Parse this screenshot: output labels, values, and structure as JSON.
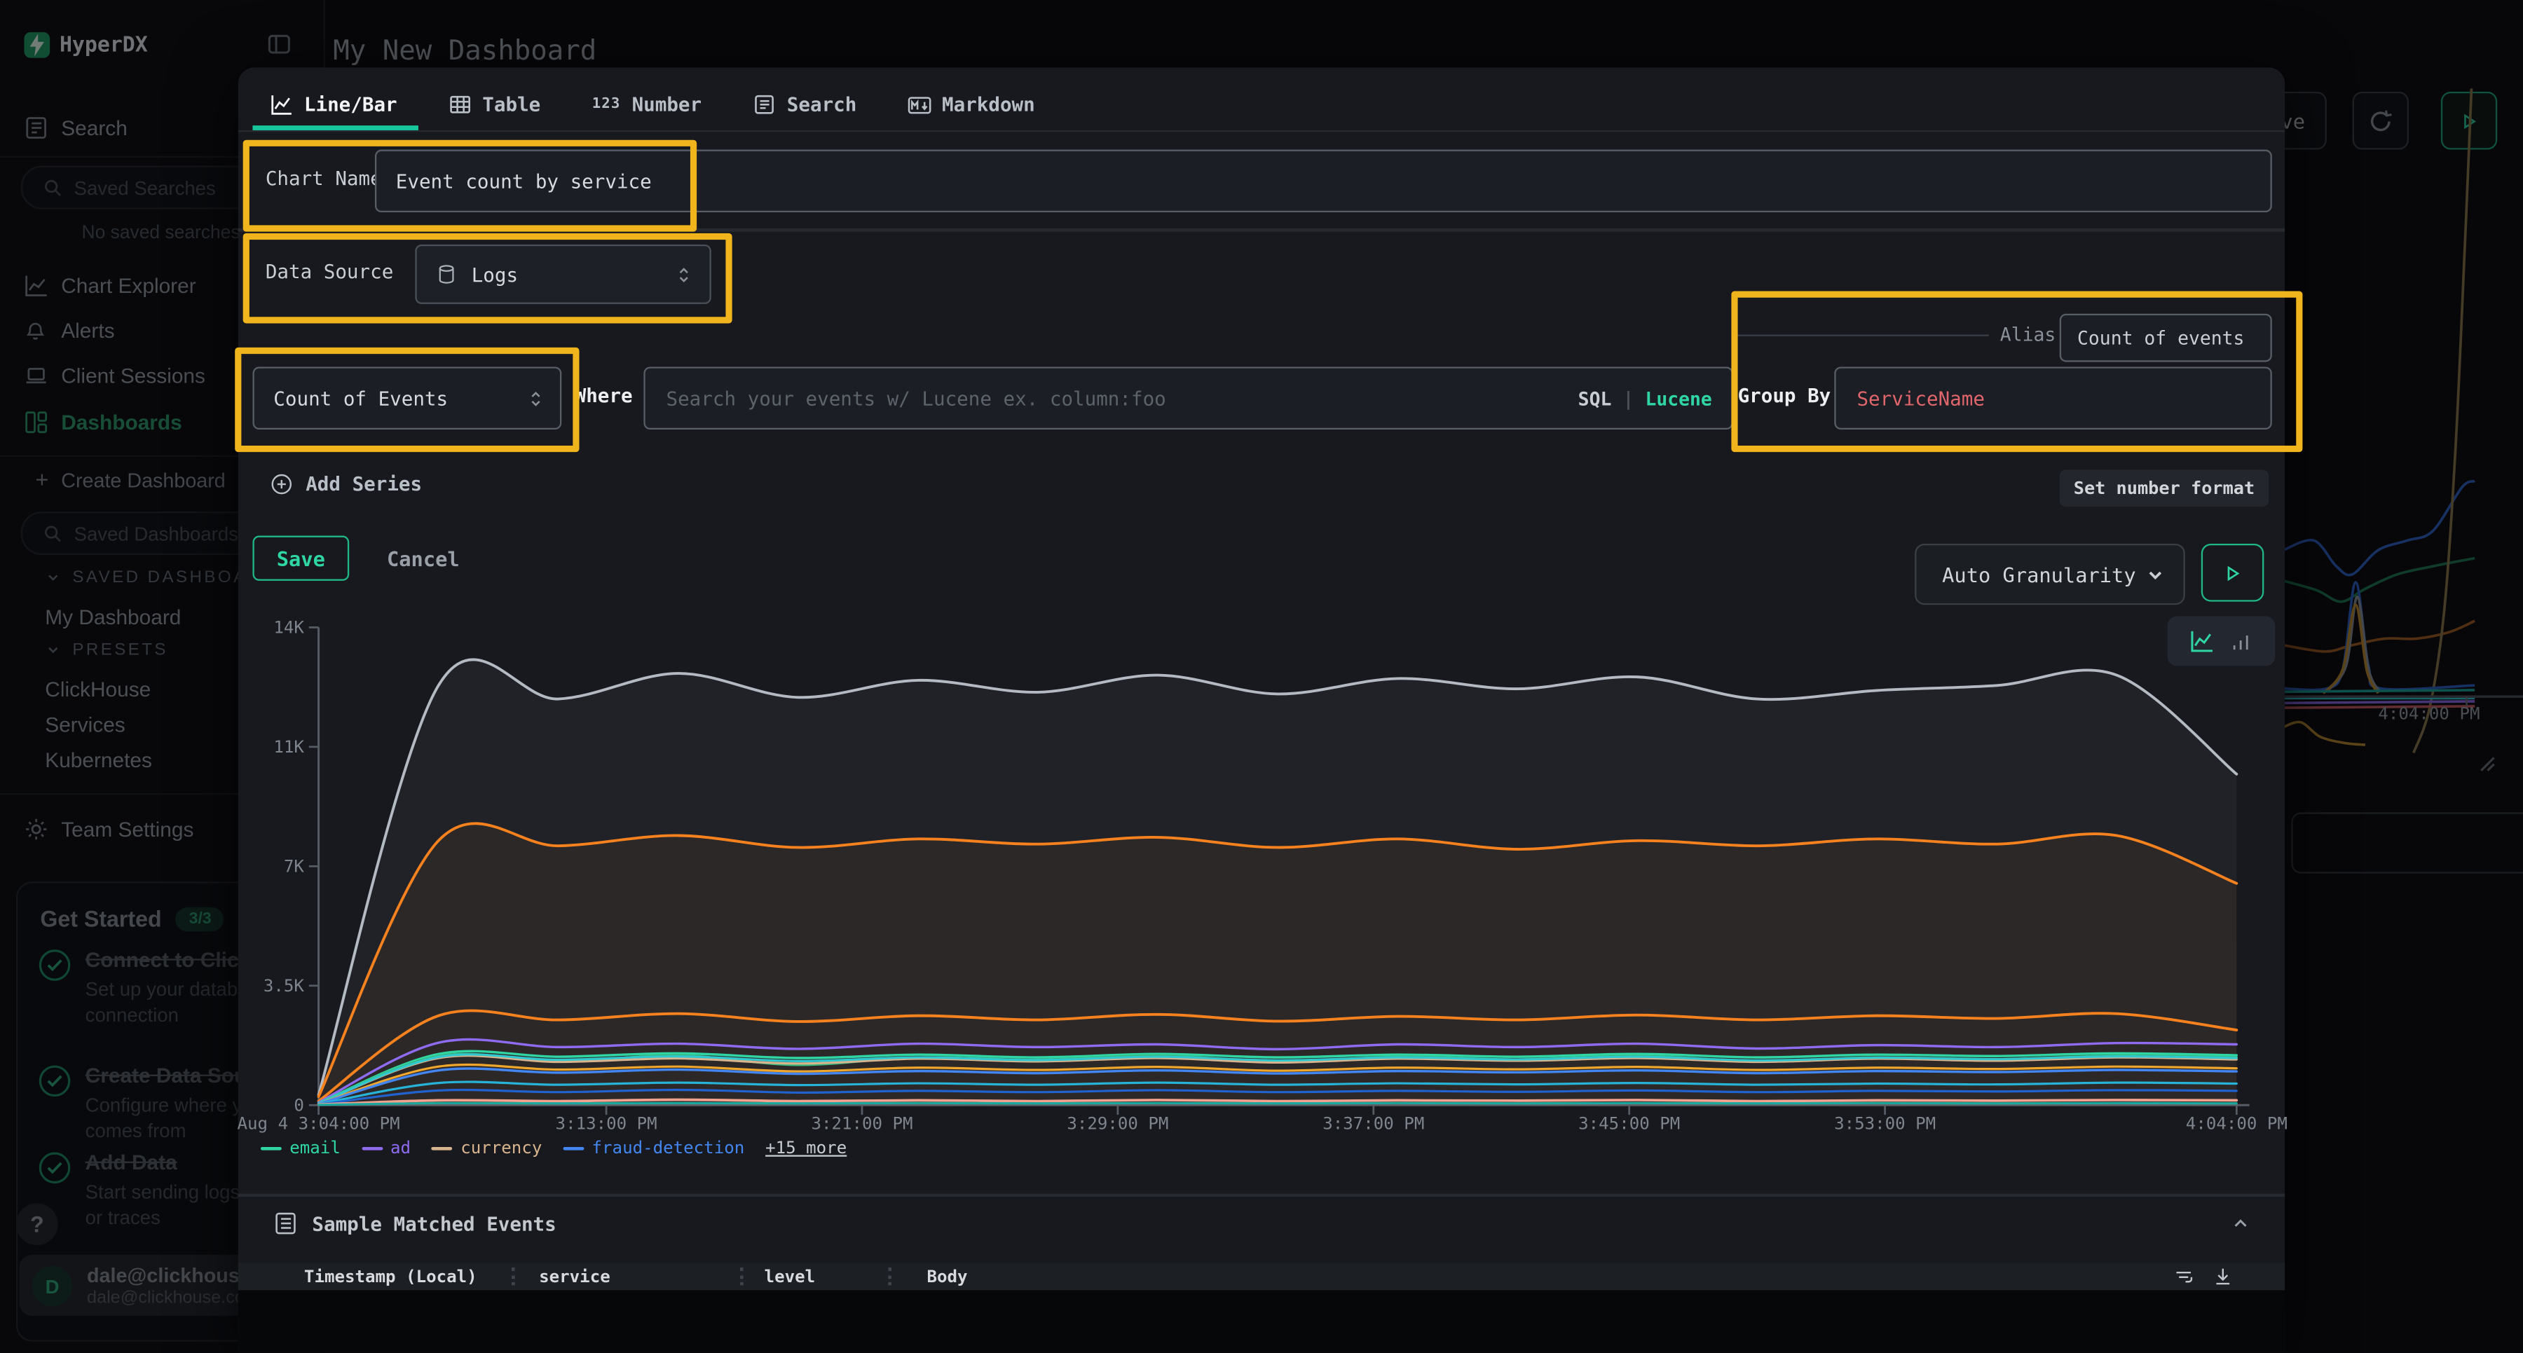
{
  "app": {
    "brand": "HyperDX",
    "page_title": "My New Dashboard"
  },
  "topbar": {
    "save_label": "Save"
  },
  "sidebar": {
    "items": [
      {
        "label": "Search"
      },
      {
        "label": "Chart Explorer"
      },
      {
        "label": "Alerts"
      },
      {
        "label": "Client Sessions"
      },
      {
        "label": "Dashboards",
        "active": true
      }
    ],
    "saved_searches_placeholder": "Saved Searches",
    "no_saved_searches": "No saved searches",
    "create_dashboard_label": "Create Dashboard",
    "saved_dashboards_placeholder": "Saved Dashboards",
    "saved_dashboards_section": "SAVED DASHBOARDS",
    "my_dashboard_label": "My Dashboard",
    "presets_section": "PRESETS",
    "presets": [
      {
        "label": "ClickHouse"
      },
      {
        "label": "Services"
      },
      {
        "label": "Kubernetes"
      }
    ],
    "team_settings_label": "Team Settings",
    "get_started": {
      "title": "Get Started",
      "badge": "3/3",
      "steps": [
        {
          "title": "Connect to ClickHouse",
          "desc": "Set up your database connection"
        },
        {
          "title": "Create Data Source",
          "desc": "Configure where your data comes from"
        },
        {
          "title": "Add Data",
          "desc": "Start sending logs, metrics, or traces"
        }
      ]
    },
    "help_label": "?",
    "user": {
      "initial": "D",
      "name": "dale@clickhouse.c",
      "subtitle": "dale@clickhouse.com's"
    }
  },
  "modal": {
    "tabs": [
      {
        "label": "Line/Bar",
        "active": true
      },
      {
        "label": "Table",
        "active": false
      },
      {
        "label": "Number",
        "active": false
      },
      {
        "label": "Search",
        "active": false
      },
      {
        "label": "Markdown",
        "active": false
      }
    ],
    "chart_name_label": "Chart Name",
    "chart_name_value": "Event count by service",
    "data_source_label": "Data Source",
    "data_source_value": "Logs",
    "aggregation_value": "Count of Events",
    "where_label": "Where",
    "where_placeholder": "Search your events w/ Lucene ex. column:foo",
    "sql_toggle": "SQL",
    "lucene_toggle": "Lucene",
    "alias_label": "Alias",
    "alias_value": "Count of events",
    "group_by_label": "Group By",
    "group_by_value": "ServiceName",
    "add_series_label": "Add Series",
    "set_number_format_label": "Set number format",
    "save_label": "Save",
    "cancel_label": "Cancel",
    "granularity_value": "Auto Granularity",
    "sample_events_title": "Sample Matched Events",
    "table_headers": [
      "Timestamp (Local)",
      "service",
      "level",
      "Body"
    ],
    "colors": {
      "accent": "#2fd6a4",
      "highlight": "#f0b41c",
      "group_by_value_color": "#e0666c"
    }
  },
  "chart_data": {
    "type": "line",
    "title": "Event count by service",
    "xlabel": "",
    "ylabel": "",
    "ylim": [
      0,
      14000
    ],
    "grid": false,
    "legend_position": "bottom-left",
    "y_ticks": [
      {
        "v": 14,
        "label": "14K"
      },
      {
        "v": 10.5,
        "label": "11K"
      },
      {
        "v": 7,
        "label": "7K"
      },
      {
        "v": 3.5,
        "label": "3.5K"
      },
      {
        "v": 0,
        "label": "0"
      }
    ],
    "x_ticks": [
      {
        "m": 0,
        "label": "Aug 4 3:04:00 PM"
      },
      {
        "m": 9,
        "label": "3:13:00 PM"
      },
      {
        "m": 17,
        "label": "3:21:00 PM"
      },
      {
        "m": 25,
        "label": "3:29:00 PM"
      },
      {
        "m": 33,
        "label": "3:37:00 PM"
      },
      {
        "m": 41,
        "label": "3:45:00 PM"
      },
      {
        "m": 49,
        "label": "3:53:00 PM"
      },
      {
        "m": 60,
        "label": "4:04:00 PM"
      }
    ],
    "x_minutes": [
      0,
      3.75,
      7.5,
      11.25,
      15,
      18.75,
      22.5,
      26.25,
      30,
      33.75,
      37.5,
      41.25,
      45,
      48.75,
      52.5,
      56.25,
      60
    ],
    "legend": [
      {
        "label": "email",
        "color": "#2fd6a4",
        "link": false
      },
      {
        "label": "ad",
        "color": "#8f6bef",
        "link": false
      },
      {
        "label": "currency",
        "color": "#d8b48e",
        "link": false
      },
      {
        "label": "fraud-detection",
        "color": "#4486f0",
        "link": false
      },
      {
        "label": "+15 more",
        "color": null,
        "link": true
      }
    ],
    "series": [
      {
        "name": "unlabeled-1",
        "color": "#b4bac2",
        "fill": "rgba(214,220,228,0.05)",
        "width": 1.7,
        "values_k": [
          0.3,
          12.3,
          11.9,
          12.65,
          11.95,
          12.45,
          12.1,
          12.6,
          12.05,
          12.5,
          12.2,
          12.55,
          11.9,
          12.15,
          12.3,
          12.6,
          9.7
        ]
      },
      {
        "name": "unlabeled-2",
        "color": "#f5821f",
        "fill": "rgba(245,130,31,0.06)",
        "width": 1.7,
        "values_k": [
          0.25,
          7.75,
          7.6,
          7.9,
          7.55,
          7.8,
          7.65,
          7.85,
          7.55,
          7.8,
          7.5,
          7.75,
          7.6,
          7.8,
          7.65,
          7.9,
          6.5
        ]
      },
      {
        "name": "unlabeled-3",
        "color": "#f5821f",
        "fill": null,
        "width": 1.7,
        "values_k": [
          0.12,
          2.62,
          2.5,
          2.68,
          2.45,
          2.62,
          2.5,
          2.66,
          2.46,
          2.6,
          2.5,
          2.64,
          2.5,
          2.62,
          2.54,
          2.68,
          2.2
        ]
      },
      {
        "name": "ad",
        "color": "#8f6bef",
        "fill": null,
        "width": 1.5,
        "values_k": [
          0.08,
          1.83,
          1.7,
          1.8,
          1.65,
          1.8,
          1.7,
          1.78,
          1.64,
          1.78,
          1.7,
          1.8,
          1.66,
          1.76,
          1.7,
          1.82,
          1.78
        ]
      },
      {
        "name": "email",
        "color": "#2fd6a4",
        "fill": null,
        "width": 1.5,
        "values_k": [
          0.06,
          1.5,
          1.42,
          1.52,
          1.38,
          1.48,
          1.4,
          1.5,
          1.4,
          1.48,
          1.42,
          1.5,
          1.4,
          1.48,
          1.44,
          1.52,
          1.46
        ]
      },
      {
        "name": "unlabeled-4",
        "color": "#37b97e",
        "fill": null,
        "width": 1.4,
        "values_k": [
          0.05,
          1.44,
          1.28,
          1.46,
          1.18,
          1.4,
          1.33,
          1.45,
          1.28,
          1.42,
          1.34,
          1.44,
          1.3,
          1.4,
          1.35,
          1.45,
          1.4
        ]
      },
      {
        "name": "currency",
        "color": "#d8b48e",
        "fill": null,
        "width": 1.4,
        "values_k": [
          0.05,
          1.38,
          1.27,
          1.37,
          1.22,
          1.36,
          1.28,
          1.38,
          1.25,
          1.36,
          1.3,
          1.38,
          1.27,
          1.36,
          1.3,
          1.4,
          1.34
        ]
      },
      {
        "name": "unlabeled-5",
        "color": "#2fc8cf",
        "fill": null,
        "width": 1.4,
        "values_k": [
          0.05,
          1.41,
          1.33,
          1.43,
          1.29,
          1.4,
          1.32,
          1.42,
          1.31,
          1.4,
          1.34,
          1.42,
          1.31,
          1.39,
          1.35,
          1.43,
          1.38
        ]
      },
      {
        "name": "unlabeled-6",
        "color": "#efa62d",
        "fill": null,
        "width": 1.4,
        "values_k": [
          0.04,
          1.13,
          1.04,
          1.13,
          0.99,
          1.1,
          1.03,
          1.12,
          1.01,
          1.1,
          1.05,
          1.12,
          1.03,
          1.1,
          1.06,
          1.13,
          1.08
        ]
      },
      {
        "name": "fraud-detection",
        "color": "#4486f0",
        "fill": null,
        "width": 1.5,
        "values_k": [
          0.04,
          1.02,
          0.95,
          1.04,
          0.92,
          1.0,
          0.94,
          1.02,
          0.93,
          1.0,
          0.96,
          1.02,
          0.94,
          1.0,
          0.97,
          1.03,
          0.99
        ]
      },
      {
        "name": "unlabeled-7",
        "color": "#27b3d8",
        "fill": null,
        "width": 1.4,
        "values_k": [
          0.03,
          0.65,
          0.6,
          0.66,
          0.59,
          0.64,
          0.6,
          0.66,
          0.6,
          0.64,
          0.61,
          0.65,
          0.6,
          0.63,
          0.61,
          0.66,
          0.63
        ]
      },
      {
        "name": "unlabeled-8",
        "color": "#2063cf",
        "fill": null,
        "width": 1.4,
        "values_k": [
          0.02,
          0.43,
          0.38,
          0.45,
          0.37,
          0.42,
          0.38,
          0.44,
          0.38,
          0.42,
          0.39,
          0.43,
          0.38,
          0.42,
          0.4,
          0.44,
          0.42
        ]
      },
      {
        "name": "unlabeled-9",
        "color": "#f2a38f",
        "fill": null,
        "width": 1.6,
        "values_k": [
          0.02,
          0.14,
          0.12,
          0.16,
          0.12,
          0.14,
          0.12,
          0.15,
          0.12,
          0.14,
          0.13,
          0.15,
          0.12,
          0.14,
          0.13,
          0.15,
          0.14
        ]
      },
      {
        "name": "unlabeled-10",
        "color": "#1ba89e",
        "fill": null,
        "width": 1.4,
        "values_k": [
          0.01,
          0.06,
          0.05,
          0.06,
          0.05,
          0.06,
          0.05,
          0.06,
          0.05,
          0.06,
          0.05,
          0.06,
          0.05,
          0.06,
          0.05,
          0.06,
          0.05
        ]
      }
    ]
  },
  "background_chart": {
    "x_axis_label": "4:04:00 PM",
    "series": [
      {
        "name": "bg-blue",
        "color": "#2e63c8",
        "points": [
          [
            1419,
            342
          ],
          [
            1438,
            336
          ],
          [
            1452,
            352
          ],
          [
            1462,
            357
          ],
          [
            1478,
            342
          ],
          [
            1496,
            336
          ],
          [
            1512,
            330
          ],
          [
            1530,
            303
          ],
          [
            1538,
            299
          ]
        ]
      },
      {
        "name": "bg-green",
        "color": "#1e7a55",
        "points": [
          [
            1419,
            361
          ],
          [
            1440,
            367
          ],
          [
            1455,
            374
          ],
          [
            1470,
            366
          ],
          [
            1490,
            357
          ],
          [
            1512,
            352
          ],
          [
            1538,
            347
          ]
        ]
      },
      {
        "name": "bg-orange",
        "color": "#a65e22",
        "points": [
          [
            1419,
            401
          ],
          [
            1445,
            405
          ],
          [
            1462,
            401
          ],
          [
            1482,
            397
          ],
          [
            1502,
            397
          ],
          [
            1522,
            393
          ],
          [
            1538,
            386
          ]
        ]
      },
      {
        "name": "bg-tan",
        "color": "#8a7a4a",
        "points": [
          [
            1500,
            468
          ],
          [
            1510,
            440
          ],
          [
            1519,
            380
          ],
          [
            1526,
            280
          ],
          [
            1532,
            150
          ],
          [
            1536,
            55
          ]
        ]
      },
      {
        "name": "bg-blue-spike",
        "color": "#2e63c8",
        "points": [
          [
            1419,
            428
          ],
          [
            1446,
            428
          ],
          [
            1456,
            416
          ],
          [
            1464,
            362
          ],
          [
            1472,
            414
          ],
          [
            1480,
            428
          ],
          [
            1538,
            426
          ]
        ]
      },
      {
        "name": "bg-gray-spike",
        "color": "#8a9097",
        "points": [
          [
            1446,
            430
          ],
          [
            1458,
            414
          ],
          [
            1465,
            371
          ],
          [
            1472,
            416
          ],
          [
            1479,
            430
          ]
        ]
      },
      {
        "name": "bg-amber-spike",
        "color": "#bd8a2e",
        "points": [
          [
            1444,
            431
          ],
          [
            1456,
            416
          ],
          [
            1464,
            376
          ],
          [
            1471,
            417
          ],
          [
            1478,
            431
          ]
        ]
      },
      {
        "name": "bg-amber-hump",
        "color": "#bd8a2e",
        "points": [
          [
            1419,
            452
          ],
          [
            1430,
            449
          ],
          [
            1442,
            458
          ],
          [
            1458,
            462
          ],
          [
            1470,
            463
          ]
        ]
      },
      {
        "name": "bg-teal-flat",
        "color": "#1ba89e",
        "points": [
          [
            1419,
            430
          ],
          [
            1538,
            429
          ]
        ]
      },
      {
        "name": "bg-purple-flat",
        "color": "#8f6bef",
        "points": [
          [
            1419,
            437
          ],
          [
            1538,
            436
          ]
        ]
      },
      {
        "name": "bg-red-flat",
        "color": "#c75a60",
        "points": [
          [
            1419,
            440
          ],
          [
            1538,
            439
          ]
        ]
      },
      {
        "name": "bg-cyan-flat",
        "color": "#2fc8cf",
        "points": [
          [
            1419,
            434
          ],
          [
            1538,
            434
          ]
        ]
      }
    ]
  }
}
